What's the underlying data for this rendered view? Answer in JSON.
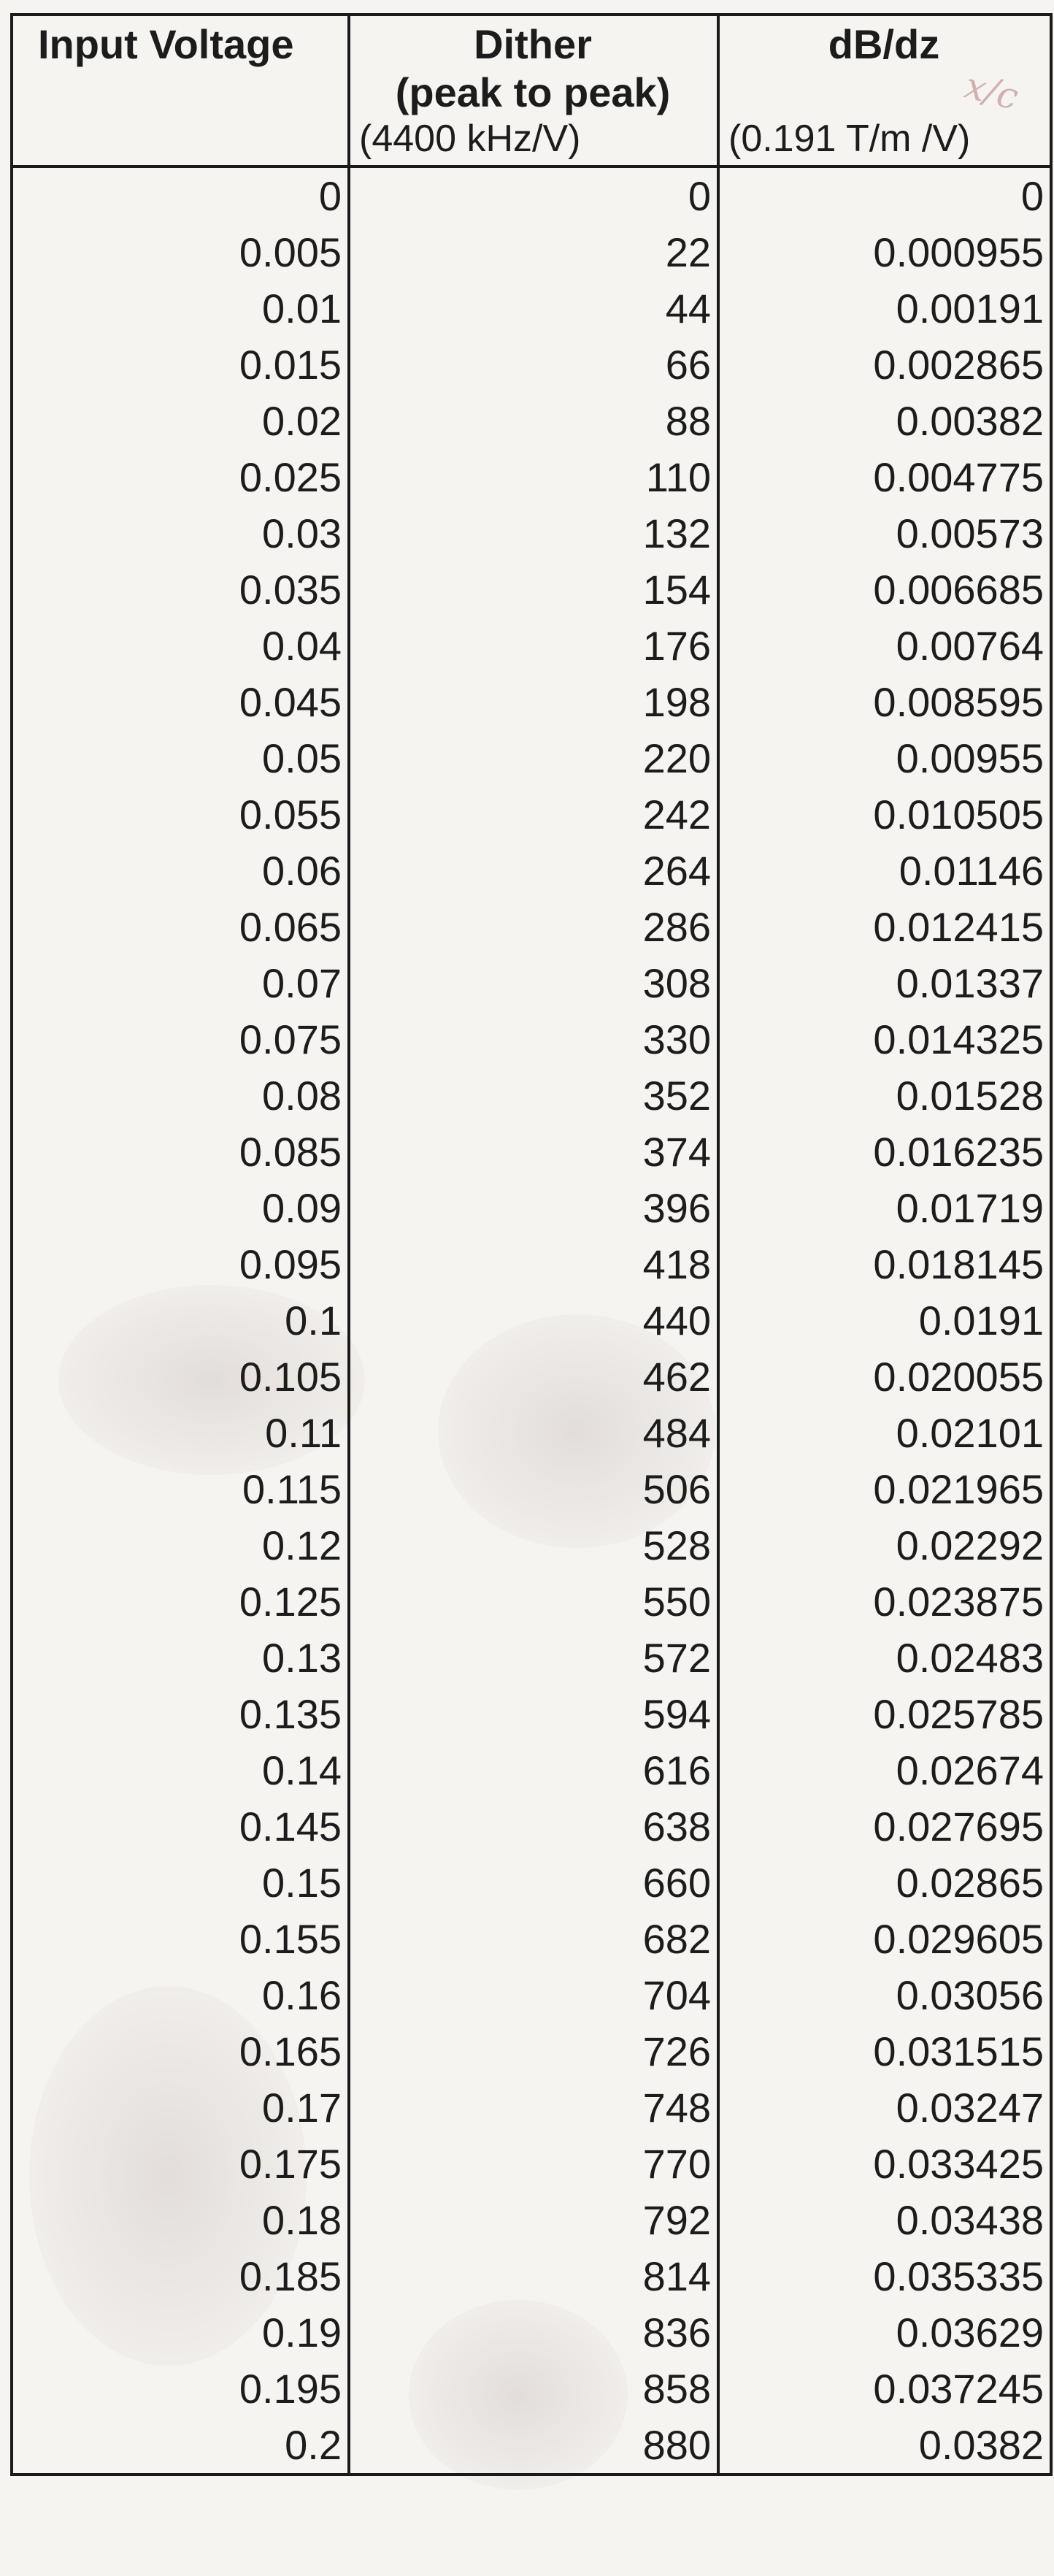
{
  "headers": {
    "col1": {
      "line1": "Input Voltage",
      "line2": "",
      "line3": ""
    },
    "col2": {
      "line1": "Dither",
      "line2": "(peak to peak)",
      "line3": "(4400 kHz/V)"
    },
    "col3": {
      "line1": "dB/dz",
      "line2": "",
      "line3": "(0.191 T/m /V)"
    }
  },
  "margin_note": "x/c",
  "rows": [
    [
      "0",
      "0",
      "0"
    ],
    [
      "0.005",
      "22",
      "0.000955"
    ],
    [
      "0.01",
      "44",
      "0.00191"
    ],
    [
      "0.015",
      "66",
      "0.002865"
    ],
    [
      "0.02",
      "88",
      "0.00382"
    ],
    [
      "0.025",
      "110",
      "0.004775"
    ],
    [
      "0.03",
      "132",
      "0.00573"
    ],
    [
      "0.035",
      "154",
      "0.006685"
    ],
    [
      "0.04",
      "176",
      "0.00764"
    ],
    [
      "0.045",
      "198",
      "0.008595"
    ],
    [
      "0.05",
      "220",
      "0.00955"
    ],
    [
      "0.055",
      "242",
      "0.010505"
    ],
    [
      "0.06",
      "264",
      "0.01146"
    ],
    [
      "0.065",
      "286",
      "0.012415"
    ],
    [
      "0.07",
      "308",
      "0.01337"
    ],
    [
      "0.075",
      "330",
      "0.014325"
    ],
    [
      "0.08",
      "352",
      "0.01528"
    ],
    [
      "0.085",
      "374",
      "0.016235"
    ],
    [
      "0.09",
      "396",
      "0.01719"
    ],
    [
      "0.095",
      "418",
      "0.018145"
    ],
    [
      "0.1",
      "440",
      "0.0191"
    ],
    [
      "0.105",
      "462",
      "0.020055"
    ],
    [
      "0.11",
      "484",
      "0.02101"
    ],
    [
      "0.115",
      "506",
      "0.021965"
    ],
    [
      "0.12",
      "528",
      "0.02292"
    ],
    [
      "0.125",
      "550",
      "0.023875"
    ],
    [
      "0.13",
      "572",
      "0.02483"
    ],
    [
      "0.135",
      "594",
      "0.025785"
    ],
    [
      "0.14",
      "616",
      "0.02674"
    ],
    [
      "0.145",
      "638",
      "0.027695"
    ],
    [
      "0.15",
      "660",
      "0.02865"
    ],
    [
      "0.155",
      "682",
      "0.029605"
    ],
    [
      "0.16",
      "704",
      "0.03056"
    ],
    [
      "0.165",
      "726",
      "0.031515"
    ],
    [
      "0.17",
      "748",
      "0.03247"
    ],
    [
      "0.175",
      "770",
      "0.033425"
    ],
    [
      "0.18",
      "792",
      "0.03438"
    ],
    [
      "0.185",
      "814",
      "0.035335"
    ],
    [
      "0.19",
      "836",
      "0.03629"
    ],
    [
      "0.195",
      "858",
      "0.037245"
    ],
    [
      "0.2",
      "880",
      "0.0382"
    ]
  ]
}
